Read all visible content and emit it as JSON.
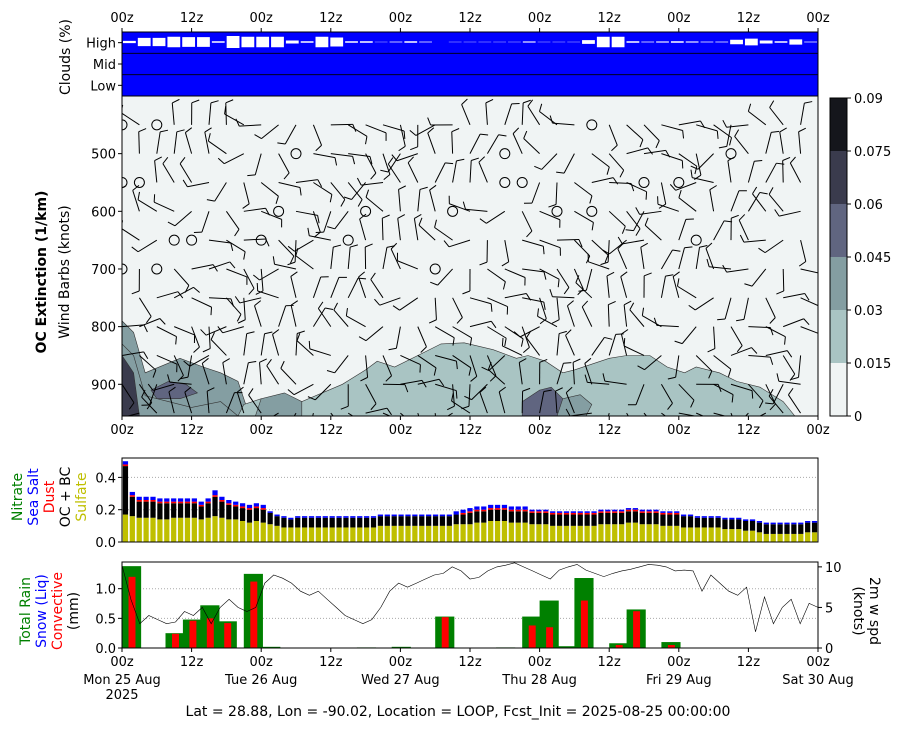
{
  "footer": "Lat = 28.88, Lon = -90.02, Location = LOOP, Fcst_Init = 2025-08-25 00:00:00",
  "colors": {
    "cloud_fill": "#0000ff",
    "cmap": [
      "#f0f4f4",
      "#d9e6e4",
      "#a9c4c3",
      "#849ea2",
      "#606580",
      "#3a3b4d",
      "#15161c"
    ],
    "rain": "#008000",
    "convective": "#ff0000",
    "sulfate": "#bfbf00",
    "ocbc": "#000000",
    "seasalt": "#0000ff",
    "dust": "#ff0000",
    "nitrate": "#008000"
  },
  "time_ticks": [
    "00z",
    "12z",
    "00z",
    "12z",
    "00z",
    "12z",
    "00z",
    "12z",
    "00z",
    "12z",
    "00z"
  ],
  "date_ticks": [
    "Mon 25 Aug",
    "Tue 26 Aug",
    "Wed 27 Aug",
    "Thu 28 Aug",
    "Fri 29 Aug",
    "Sat 30 Aug"
  ],
  "date_year": "2025",
  "chart_data": [
    {
      "type": "heatmap",
      "panel": "clouds",
      "ylabel": "Clouds (%)",
      "levels": [
        "High",
        "Mid",
        "Low"
      ],
      "high_cloud_gaps_pct": [
        6,
        22,
        22,
        28,
        26,
        26,
        4,
        32,
        28,
        28,
        28,
        8,
        4,
        28,
        24,
        4,
        4,
        1,
        2,
        4,
        2,
        0,
        1,
        1,
        1,
        1,
        1,
        3,
        1,
        1,
        1,
        10,
        28,
        28,
        4,
        2,
        3,
        4,
        3,
        2,
        2,
        12,
        18,
        8,
        4,
        14,
        2
      ]
    },
    {
      "type": "heatmap",
      "panel": "oc_extinction",
      "ylabel": "OC Extinction (1/km)",
      "ylabel2": "Wind Barbs (knots)",
      "yticks": [
        "500",
        "600",
        "700",
        "800",
        "900"
      ],
      "ylim": [
        955,
        400
      ],
      "colorbar_ticks": [
        "0",
        "0.015",
        "0.03",
        "0.045",
        "0.06",
        "0.075",
        "0.09"
      ],
      "contour_levels": [
        0,
        0.015,
        0.03,
        0.045,
        0.06,
        0.075,
        0.09
      ]
    },
    {
      "type": "bar",
      "panel": "aerosol",
      "stacked": true,
      "ylim": [
        0,
        0.52
      ],
      "yticks": [
        "0.0",
        "0.2",
        "0.4"
      ],
      "series": [
        {
          "name": "Sulfate",
          "values": [
            0.17,
            0.16,
            0.15,
            0.15,
            0.15,
            0.14,
            0.14,
            0.15,
            0.15,
            0.15,
            0.15,
            0.14,
            0.15,
            0.16,
            0.15,
            0.14,
            0.14,
            0.13,
            0.12,
            0.13,
            0.12,
            0.11,
            0.1,
            0.09,
            0.09,
            0.09,
            0.09,
            0.09,
            0.09,
            0.09,
            0.09,
            0.09,
            0.09,
            0.09,
            0.09,
            0.09,
            0.09,
            0.1,
            0.1,
            0.1,
            0.1,
            0.1,
            0.1,
            0.1,
            0.1,
            0.1,
            0.1,
            0.1,
            0.11,
            0.11,
            0.11,
            0.12,
            0.12,
            0.13,
            0.13,
            0.13,
            0.12,
            0.12,
            0.12,
            0.11,
            0.11,
            0.11,
            0.1,
            0.1,
            0.1,
            0.1,
            0.1,
            0.1,
            0.1,
            0.11,
            0.11,
            0.11,
            0.11,
            0.12,
            0.12,
            0.11,
            0.11,
            0.11,
            0.1,
            0.1,
            0.1,
            0.09,
            0.09,
            0.09,
            0.09,
            0.09,
            0.09,
            0.08,
            0.08,
            0.08,
            0.07,
            0.07,
            0.06,
            0.05,
            0.05,
            0.05,
            0.05,
            0.05,
            0.05,
            0.06,
            0.06
          ]
        },
        {
          "name": "OC + BC",
          "values": [
            0.3,
            0.12,
            0.1,
            0.1,
            0.1,
            0.1,
            0.1,
            0.09,
            0.09,
            0.09,
            0.09,
            0.08,
            0.09,
            0.12,
            0.1,
            0.09,
            0.08,
            0.08,
            0.08,
            0.08,
            0.08,
            0.07,
            0.06,
            0.06,
            0.05,
            0.06,
            0.06,
            0.06,
            0.06,
            0.06,
            0.06,
            0.06,
            0.06,
            0.06,
            0.06,
            0.06,
            0.06,
            0.06,
            0.06,
            0.06,
            0.06,
            0.06,
            0.06,
            0.06,
            0.06,
            0.06,
            0.06,
            0.06,
            0.06,
            0.06,
            0.07,
            0.07,
            0.07,
            0.07,
            0.07,
            0.07,
            0.07,
            0.07,
            0.07,
            0.07,
            0.07,
            0.07,
            0.07,
            0.07,
            0.07,
            0.07,
            0.07,
            0.07,
            0.07,
            0.07,
            0.07,
            0.07,
            0.07,
            0.07,
            0.07,
            0.07,
            0.07,
            0.07,
            0.07,
            0.07,
            0.07,
            0.07,
            0.07,
            0.06,
            0.06,
            0.06,
            0.06,
            0.06,
            0.06,
            0.06,
            0.06,
            0.06,
            0.06,
            0.06,
            0.06,
            0.06,
            0.06,
            0.06,
            0.06,
            0.06,
            0.06
          ]
        },
        {
          "name": "Dust",
          "values": [
            0.01,
            0.01,
            0.01,
            0.01,
            0.01,
            0.01,
            0.01,
            0.01,
            0.01,
            0.01,
            0.01,
            0.01,
            0.01,
            0.01,
            0.01,
            0.01,
            0.01,
            0.01,
            0.01,
            0.01,
            0.01,
            0.0,
            0.0,
            0.0,
            0.0,
            0.0,
            0.0,
            0.0,
            0.0,
            0.0,
            0.0,
            0.0,
            0.0,
            0.0,
            0.0,
            0.0,
            0.0,
            0.0,
            0.0,
            0.0,
            0.0,
            0.0,
            0.0,
            0.0,
            0.0,
            0.0,
            0.0,
            0.0,
            0.0,
            0.01,
            0.01,
            0.01,
            0.01,
            0.01,
            0.01,
            0.01,
            0.01,
            0.01,
            0.01,
            0.01,
            0.01,
            0.01,
            0.01,
            0.01,
            0.01,
            0.01,
            0.01,
            0.01,
            0.01,
            0.01,
            0.01,
            0.01,
            0.01,
            0.01,
            0.01,
            0.01,
            0.01,
            0.01,
            0.01,
            0.01,
            0.01,
            0.0,
            0.0,
            0.0,
            0.0,
            0.0,
            0.0,
            0.0,
            0.0,
            0.0,
            0.0,
            0.0,
            0.0,
            0.0,
            0.0,
            0.0,
            0.0,
            0.0,
            0.0,
            0.0,
            0.0
          ]
        },
        {
          "name": "Sea Salt",
          "values": [
            0.02,
            0.02,
            0.02,
            0.02,
            0.02,
            0.02,
            0.02,
            0.02,
            0.02,
            0.02,
            0.02,
            0.02,
            0.02,
            0.03,
            0.02,
            0.02,
            0.02,
            0.02,
            0.02,
            0.02,
            0.02,
            0.01,
            0.01,
            0.01,
            0.01,
            0.01,
            0.01,
            0.01,
            0.01,
            0.01,
            0.01,
            0.01,
            0.01,
            0.01,
            0.01,
            0.01,
            0.01,
            0.01,
            0.01,
            0.01,
            0.01,
            0.01,
            0.01,
            0.01,
            0.01,
            0.01,
            0.01,
            0.01,
            0.02,
            0.02,
            0.02,
            0.02,
            0.02,
            0.02,
            0.02,
            0.02,
            0.02,
            0.02,
            0.02,
            0.01,
            0.01,
            0.01,
            0.01,
            0.01,
            0.01,
            0.01,
            0.01,
            0.01,
            0.01,
            0.01,
            0.01,
            0.01,
            0.01,
            0.01,
            0.01,
            0.01,
            0.01,
            0.01,
            0.01,
            0.01,
            0.01,
            0.01,
            0.01,
            0.01,
            0.01,
            0.01,
            0.01,
            0.01,
            0.01,
            0.01,
            0.01,
            0.01,
            0.01,
            0.01,
            0.01,
            0.01,
            0.01,
            0.01,
            0.01,
            0.01,
            0.01
          ]
        },
        {
          "name": "Nitrate",
          "values": []
        }
      ]
    },
    {
      "type": "bar",
      "panel": "precip",
      "ylabel_left": [
        "Total Rain",
        "Snow (Liq)",
        "Convective",
        "(mm)"
      ],
      "ylabel_right": [
        "2m w spd",
        "(knots)"
      ],
      "ylim": [
        0,
        1.45
      ],
      "yticks": [
        "0.0",
        "0.5",
        "1.0"
      ],
      "y2lim": [
        0,
        10.6
      ],
      "y2ticks": [
        "0",
        "5",
        "10"
      ],
      "rain": [
        [
          0,
          1.38
        ],
        [
          5,
          0.25
        ],
        [
          7,
          0.48
        ],
        [
          9,
          0.72
        ],
        [
          11,
          0.45
        ],
        [
          14,
          1.25
        ],
        [
          16,
          0.02
        ],
        [
          27,
          0.01
        ],
        [
          31,
          0.02
        ],
        [
          36,
          0.53
        ],
        [
          43,
          0.01
        ],
        [
          46,
          0.53
        ],
        [
          48,
          0.8
        ],
        [
          50,
          0.03
        ],
        [
          52,
          1.18
        ],
        [
          56,
          0.08
        ],
        [
          58,
          0.65
        ],
        [
          62,
          0.1
        ]
      ],
      "convective": [
        [
          0,
          1.2
        ],
        [
          5,
          0.24
        ],
        [
          7,
          0.46
        ],
        [
          9,
          0.5
        ],
        [
          11,
          0.42
        ],
        [
          14,
          1.12
        ],
        [
          36,
          0.52
        ],
        [
          46,
          0.38
        ],
        [
          48,
          0.35
        ],
        [
          52,
          0.8
        ],
        [
          56,
          0.05
        ],
        [
          58,
          0.62
        ],
        [
          62,
          0.05
        ]
      ],
      "wind_speed": [
        10.2,
        6,
        3,
        4,
        3.5,
        3,
        3.2,
        4.5,
        4,
        5,
        3,
        5,
        6,
        5,
        4.5,
        5,
        8,
        9,
        8.6,
        8,
        7,
        6.5,
        7,
        6,
        5,
        4,
        3.5,
        3,
        3.5,
        5,
        7,
        8,
        7.5,
        8,
        8.5,
        9,
        9.2,
        10,
        9.5,
        8.5,
        8.7,
        9.5,
        10,
        10.2,
        10.5,
        10,
        9.5,
        9,
        8.5,
        9.6,
        10,
        10.3,
        9.6,
        9.2,
        8.8,
        9.2,
        9.5,
        9.7,
        10,
        10.3,
        10.2,
        10,
        9.5,
        9.6,
        9.5,
        7,
        9,
        8,
        7,
        6.5,
        7.5,
        2,
        6.3,
        3,
        5,
        6,
        3,
        5.5,
        5
      ]
    }
  ]
}
